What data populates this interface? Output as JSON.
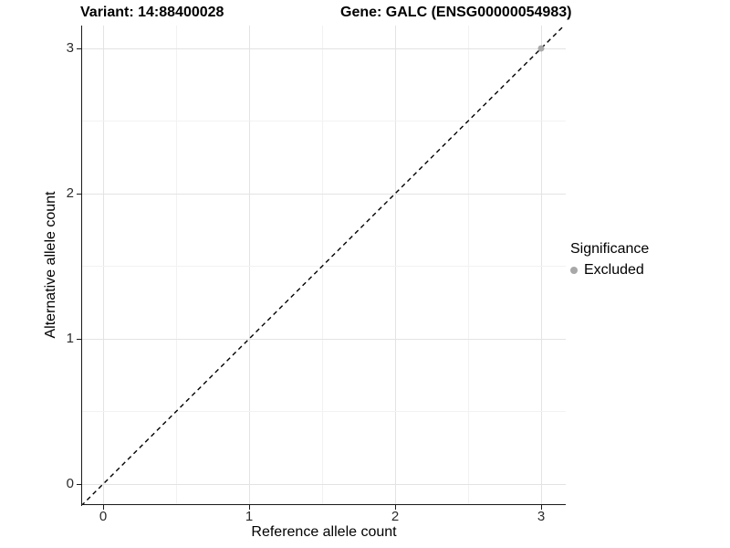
{
  "titles": {
    "variant": "Variant: 14:88400028",
    "gene": "Gene: GALC (ENSG00000054983)"
  },
  "axes": {
    "x": {
      "label": "Reference allele count",
      "tick_labels": [
        "0",
        "1",
        "2",
        "3"
      ]
    },
    "y": {
      "label": "Alternative allele count",
      "tick_labels": [
        "0",
        "1",
        "2",
        "3"
      ]
    }
  },
  "legend": {
    "title": "Significance",
    "items": [
      {
        "label": "Excluded",
        "color": "#a8a8a8"
      }
    ]
  },
  "colors": {
    "background": "#ffffff",
    "axis_line": "#1a1a1a",
    "grid_major": "#e3e3e3",
    "grid_minor": "#f2f2f2",
    "point_excluded": "#a8a8a8",
    "reference_line": "#000000"
  },
  "chart_data": {
    "type": "scatter",
    "title": "Variant: 14:88400028 — Gene: GALC (ENSG00000054983)",
    "xlabel": "Reference allele count",
    "ylabel": "Alternative allele count",
    "xlim": [
      -0.15,
      3.17
    ],
    "ylim": [
      -0.14,
      3.16
    ],
    "x_ticks": [
      0,
      1,
      2,
      3
    ],
    "y_ticks": [
      0,
      1,
      2,
      3
    ],
    "grid": {
      "major_every": 1,
      "minor_every": 0.5
    },
    "legend_position": "right",
    "series": [
      {
        "name": "Excluded",
        "color": "#a8a8a8",
        "points": [
          {
            "x": 3,
            "y": 3
          }
        ]
      }
    ],
    "reference_line": {
      "type": "identity y=x",
      "style": "dashed",
      "color": "#000000",
      "from": [
        -0.15,
        -0.15
      ],
      "to": [
        3.18,
        3.18
      ]
    }
  }
}
